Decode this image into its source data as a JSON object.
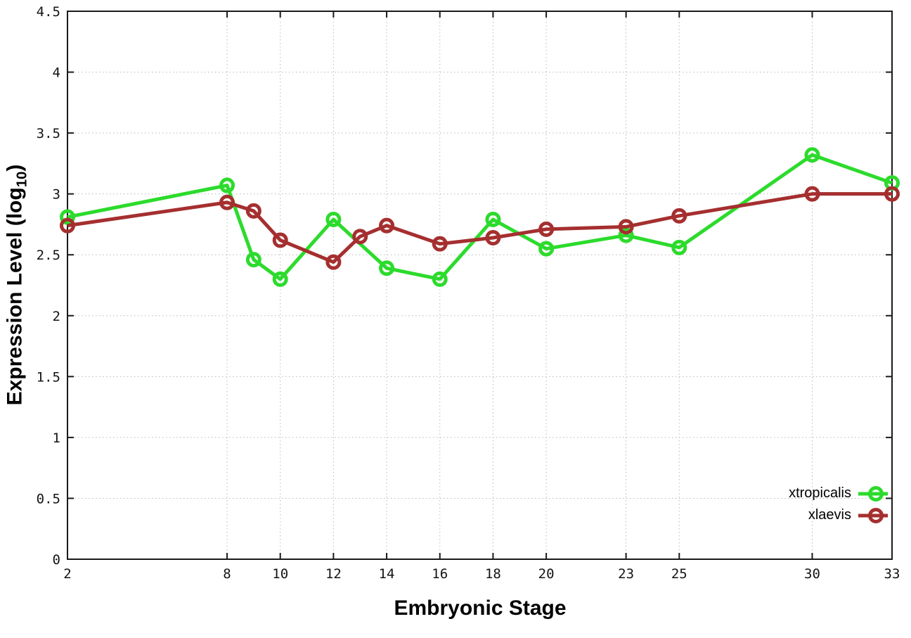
{
  "figure": {
    "background": "#ffffff",
    "border_color": "#1a1a1a",
    "grid_color": "#b8b8b8",
    "tick_label_color": "#141414"
  },
  "chart_data": {
    "type": "line",
    "title": "",
    "xlabel": "Embryonic Stage",
    "ylabel": "Expression Level (log10)",
    "ylabel_parts": {
      "main": "Expression Level (log",
      "sub": "10",
      "end": ")"
    },
    "xlim": [
      2,
      33
    ],
    "ylim": [
      0,
      4.5
    ],
    "x_ticks": [
      "2",
      "8",
      "10",
      "12",
      "14",
      "16",
      "18",
      "20",
      "23",
      "25",
      "30",
      "33"
    ],
    "y_ticks": [
      "0",
      "0.5",
      "1",
      "1.5",
      "2",
      "2.5",
      "3",
      "3.5",
      "4",
      "4.5"
    ],
    "grid": "dotted, both axes",
    "legend_position": "inside bottom-right",
    "series": [
      {
        "name": "xtropicalis",
        "color": "#2CDB2C",
        "marker": "open-circle",
        "points": [
          [
            2,
            2.81
          ],
          [
            8,
            3.07
          ],
          [
            9,
            2.46
          ],
          [
            10,
            2.3
          ],
          [
            12,
            2.79
          ],
          [
            14,
            2.39
          ],
          [
            16,
            2.3
          ],
          [
            18,
            2.79
          ],
          [
            20,
            2.55
          ],
          [
            23,
            2.66
          ],
          [
            25,
            2.56
          ],
          [
            30,
            3.32
          ],
          [
            33,
            3.09
          ]
        ]
      },
      {
        "name": "xlaevis",
        "color": "#A52F2F",
        "marker": "open-circle",
        "points": [
          [
            2,
            2.74
          ],
          [
            8,
            2.93
          ],
          [
            9,
            2.86
          ],
          [
            10,
            2.62
          ],
          [
            12,
            2.44
          ],
          [
            13,
            2.65
          ],
          [
            14,
            2.74
          ],
          [
            16,
            2.59
          ],
          [
            18,
            2.64
          ],
          [
            20,
            2.71
          ],
          [
            23,
            2.73
          ],
          [
            25,
            2.82
          ],
          [
            30,
            3.0
          ],
          [
            33,
            3.0
          ]
        ]
      }
    ]
  }
}
